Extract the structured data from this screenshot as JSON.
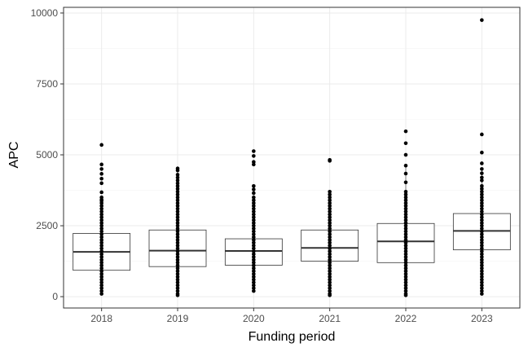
{
  "chart_data": {
    "type": "boxplot",
    "title": "",
    "xlabel": "Funding period",
    "ylabel": "APC",
    "categories": [
      "2018",
      "2019",
      "2020",
      "2021",
      "2022",
      "2023"
    ],
    "ylim": [
      -400,
      10200
    ],
    "yticks": [
      0,
      2500,
      5000,
      7500,
      10000
    ],
    "grid": true,
    "legend": "none",
    "boxes": [
      {
        "category": "2018",
        "q1": 930,
        "median": 1580,
        "q3": 2230,
        "whisker_low": 100,
        "whisker_high": 3350
      },
      {
        "category": "2019",
        "q1": 1060,
        "median": 1620,
        "q3": 2350,
        "whisker_low": 50,
        "whisker_high": 4500
      },
      {
        "category": "2020",
        "q1": 1110,
        "median": 1610,
        "q3": 2040,
        "whisker_low": 200,
        "whisker_high": 3400
      },
      {
        "category": "2021",
        "q1": 1250,
        "median": 1720,
        "q3": 2350,
        "whisker_low": 50,
        "whisker_high": 3700
      },
      {
        "category": "2022",
        "q1": 1200,
        "median": 1950,
        "q3": 2580,
        "whisker_low": 50,
        "whisker_high": 4600
      },
      {
        "category": "2023",
        "q1": 1650,
        "median": 2320,
        "q3": 2930,
        "whisker_low": 80,
        "whisker_high": 4500
      }
    ],
    "points": [
      {
        "category": "2018",
        "values": [
          5350,
          4660,
          4500,
          4330,
          4160,
          4000,
          3680,
          3500,
          3420,
          3380,
          3300,
          3200,
          3100,
          3000,
          2900,
          2800,
          2700,
          2600,
          2500,
          2400,
          2300,
          2200,
          2100,
          2000,
          1900,
          1800,
          1700,
          1600,
          1500,
          1400,
          1300,
          1200,
          1100,
          1000,
          900,
          800,
          700,
          600,
          500,
          400,
          300,
          200,
          100
        ]
      },
      {
        "category": "2019",
        "values": [
          4520,
          4450,
          4300,
          4200,
          4100,
          4000,
          3900,
          3800,
          3700,
          3600,
          3500,
          3400,
          3300,
          3200,
          3100,
          3000,
          2900,
          2800,
          2700,
          2600,
          2500,
          2400,
          2300,
          2200,
          2100,
          2000,
          1900,
          1800,
          1700,
          1600,
          1500,
          1400,
          1300,
          1200,
          1100,
          1000,
          900,
          800,
          700,
          600,
          500,
          400,
          300,
          200,
          100,
          50
        ]
      },
      {
        "category": "2020",
        "values": [
          5130,
          4960,
          4750,
          4660,
          3900,
          3780,
          3650,
          3500,
          3400,
          3300,
          3200,
          3100,
          3000,
          2900,
          2800,
          2700,
          2600,
          2500,
          2400,
          2300,
          2200,
          2100,
          2000,
          1900,
          1800,
          1700,
          1600,
          1500,
          1400,
          1300,
          1200,
          1100,
          1000,
          900,
          800,
          700,
          600,
          500,
          400,
          300,
          200
        ]
      },
      {
        "category": "2021",
        "values": [
          4820,
          4790,
          3700,
          3600,
          3500,
          3400,
          3300,
          3200,
          3100,
          3000,
          2900,
          2800,
          2700,
          2600,
          2500,
          2400,
          2300,
          2200,
          2100,
          2000,
          1900,
          1800,
          1700,
          1600,
          1500,
          1400,
          1300,
          1200,
          1100,
          1000,
          900,
          800,
          700,
          600,
          500,
          400,
          300,
          200,
          100,
          50
        ]
      },
      {
        "category": "2022",
        "values": [
          5830,
          5410,
          5000,
          4620,
          4340,
          4030,
          3700,
          3600,
          3500,
          3400,
          3300,
          3200,
          3100,
          3000,
          2900,
          2800,
          2700,
          2600,
          2500,
          2400,
          2300,
          2200,
          2100,
          2000,
          1900,
          1800,
          1700,
          1600,
          1500,
          1400,
          1300,
          1200,
          1100,
          1000,
          900,
          800,
          700,
          600,
          500,
          400,
          300,
          200,
          100,
          50
        ]
      },
      {
        "category": "2023",
        "values": [
          9750,
          5720,
          5080,
          4700,
          4500,
          4350,
          4200,
          4100,
          3900,
          3800,
          3700,
          3600,
          3500,
          3400,
          3300,
          3200,
          3100,
          3000,
          2900,
          2800,
          2700,
          2600,
          2500,
          2400,
          2300,
          2200,
          2100,
          2000,
          1900,
          1800,
          1700,
          1600,
          1500,
          1400,
          1300,
          1200,
          1100,
          1000,
          900,
          800,
          700,
          600,
          500,
          400,
          300,
          200,
          100
        ]
      }
    ],
    "colors": {
      "background": "#ffffff",
      "panel_border": "#333333",
      "grid_major": "#ebebeb",
      "grid_minor": "#f5f5f5",
      "box_stroke": "#333333",
      "box_fill": "#ffffff",
      "point": "#000000",
      "tick_label": "#4d4d4d",
      "axis_title": "#000000"
    }
  }
}
